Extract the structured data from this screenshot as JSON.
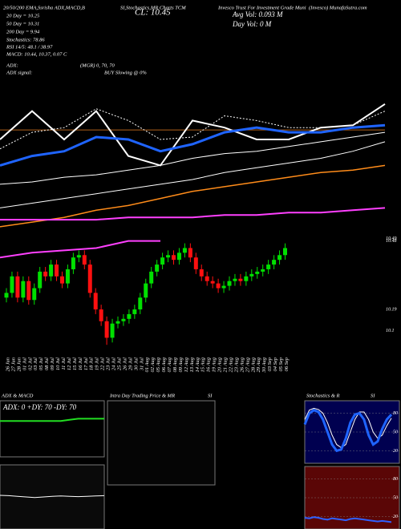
{
  "header": {
    "indicators": "20/50/200 EMA,Ssrisha ADX,MACD,B",
    "indicators2": "SI,Stochastics,MR Charts TCM",
    "close": "CL: 10.45",
    "company": "Invesco Trust For Investment Grade Muni",
    "site": "(Invesco) MunafaSutra.com",
    "avg_vol": "Avg Vol: 0.093 M",
    "day_vol": "Day Vol: 0  M",
    "ma20": "20 Day = 10.25",
    "ma50": "50 Day = 10.31",
    "ma200": "200 Day = 9.94",
    "stoch": "Stochastics: 78.86",
    "rsi": "RSI 14/5: 48.1 / 38.97",
    "macd": "MACD: 10.44, 10.37, 0.07 C",
    "adx": "ADX:",
    "adx_values": "(MGR) 0, 70, 70",
    "adx_signal": "ADX  signal:",
    "signal": "BUY Slowing @ 0%"
  },
  "intraday": {
    "title": "Intra Day Trading Price & MR",
    "title2": "SI"
  },
  "chart_data": [
    {
      "type": "candlestick",
      "categories": [
        "26 Jun",
        "27 Jun",
        "28 Jun",
        "01 Jul",
        "02 Jul",
        "03 Jul",
        "05 Jul",
        "08 Jul",
        "09 Jul",
        "10 Jul",
        "11 Jul",
        "12 Jul",
        "15 Jul",
        "16 Jul",
        "17 Jul",
        "18 Jul",
        "19 Jul",
        "22 Jul",
        "23 Jul",
        "24 Jul",
        "25 Jul",
        "26 Jul",
        "29 Jul",
        "30 Jul",
        "31 Jul",
        "01 Aug",
        "02 Aug",
        "05 Aug",
        "06 Aug",
        "07 Aug",
        "08 Aug",
        "09 Aug",
        "12 Aug",
        "13 Aug",
        "14 Aug",
        "15 Aug",
        "16 Aug",
        "19 Aug",
        "20 Aug",
        "21 Aug",
        "22 Aug",
        "23 Aug",
        "26 Aug",
        "27 Aug",
        "28 Aug",
        "29 Aug",
        "30 Aug",
        "03 Sep",
        "04 Sep",
        "05 Sep",
        "06 Sep"
      ],
      "open": [
        10.24,
        10.26,
        10.33,
        10.24,
        10.31,
        10.23,
        10.28,
        10.35,
        10.33,
        10.38,
        10.33,
        10.3,
        10.36,
        10.41,
        10.42,
        10.38,
        10.26,
        10.19,
        10.14,
        10.07,
        10.13,
        10.14,
        10.15,
        10.17,
        10.19,
        10.24,
        10.3,
        10.35,
        10.38,
        10.41,
        10.42,
        10.4,
        10.43,
        10.45,
        10.41,
        10.36,
        10.33,
        10.31,
        10.3,
        10.28,
        10.29,
        10.31,
        10.32,
        10.31,
        10.33,
        10.34,
        10.35,
        10.36,
        10.38,
        10.4,
        10.42
      ],
      "high": [
        10.28,
        10.35,
        10.35,
        10.33,
        10.33,
        10.3,
        10.37,
        10.37,
        10.4,
        10.4,
        10.35,
        10.38,
        10.43,
        10.44,
        10.44,
        10.4,
        10.28,
        10.21,
        10.16,
        10.15,
        10.16,
        10.17,
        10.19,
        10.21,
        10.26,
        10.32,
        10.37,
        10.4,
        10.43,
        10.44,
        10.44,
        10.45,
        10.47,
        10.47,
        10.43,
        10.38,
        10.35,
        10.33,
        10.32,
        10.31,
        10.33,
        10.34,
        10.34,
        10.35,
        10.36,
        10.37,
        10.38,
        10.4,
        10.42,
        10.44,
        10.47
      ],
      "low": [
        10.22,
        10.24,
        10.22,
        10.22,
        10.21,
        10.21,
        10.26,
        10.31,
        10.31,
        10.31,
        10.28,
        10.28,
        10.34,
        10.39,
        10.36,
        10.24,
        10.17,
        10.12,
        10.04,
        10.05,
        10.11,
        10.12,
        10.13,
        10.15,
        10.17,
        10.22,
        10.28,
        10.33,
        10.36,
        10.39,
        10.38,
        10.38,
        10.41,
        10.39,
        10.34,
        10.31,
        10.29,
        10.28,
        10.26,
        10.26,
        10.27,
        10.29,
        10.29,
        10.29,
        10.31,
        10.32,
        10.33,
        10.34,
        10.36,
        10.38,
        10.4
      ],
      "close": [
        10.26,
        10.33,
        10.24,
        10.31,
        10.23,
        10.28,
        10.35,
        10.33,
        10.38,
        10.33,
        10.3,
        10.36,
        10.41,
        10.42,
        10.38,
        10.26,
        10.19,
        10.14,
        10.07,
        10.13,
        10.14,
        10.15,
        10.17,
        10.19,
        10.24,
        10.3,
        10.35,
        10.38,
        10.41,
        10.42,
        10.4,
        10.43,
        10.45,
        10.41,
        10.36,
        10.33,
        10.31,
        10.3,
        10.28,
        10.29,
        10.31,
        10.32,
        10.31,
        10.33,
        10.34,
        10.35,
        10.36,
        10.38,
        10.4,
        10.42,
        10.45
      ],
      "up_color": "#00e000",
      "down_color": "#ff1010",
      "ylim": [
        10.0,
        11.1
      ],
      "yticks": [
        10.49,
        10.48,
        10.19,
        10.1
      ]
    },
    {
      "type": "line",
      "x": [
        0,
        1,
        2,
        3,
        4,
        5,
        6,
        7,
        8,
        9,
        10,
        11,
        12
      ],
      "xlim": [
        0,
        12
      ],
      "ylim": [
        10.0,
        11.1
      ],
      "hline": 10.95,
      "hline_color": "#b0601a",
      "series": [
        {
          "color": "#ffffff",
          "width": 2,
          "values": [
            10.91,
            11.03,
            10.91,
            11.03,
            10.84,
            10.8,
            10.99,
            10.96,
            10.91,
            10.91,
            10.96,
            10.97,
            11.06
          ]
        },
        {
          "color": "#ffffff",
          "width": 1,
          "dashed": true,
          "values": [
            10.87,
            10.94,
            10.96,
            11.04,
            10.99,
            10.91,
            10.92,
            11.01,
            10.99,
            10.96,
            10.96,
            10.97,
            11.03
          ]
        },
        {
          "color": "#1f64ff",
          "width": 3,
          "values": [
            10.8,
            10.84,
            10.86,
            10.92,
            10.91,
            10.86,
            10.89,
            10.94,
            10.96,
            10.94,
            10.94,
            10.96,
            10.97
          ]
        },
        {
          "color": "#ffffff",
          "width": 1,
          "values": [
            10.72,
            10.73,
            10.75,
            10.76,
            10.78,
            10.8,
            10.83,
            10.85,
            10.86,
            10.88,
            10.9,
            10.92,
            10.94
          ]
        },
        {
          "color": "#ffffff",
          "width": 1,
          "values": [
            10.62,
            10.64,
            10.66,
            10.68,
            10.7,
            10.72,
            10.74,
            10.77,
            10.79,
            10.81,
            10.83,
            10.86,
            10.9
          ]
        },
        {
          "color": "#ff8c1a",
          "width": 1.5,
          "values": [
            10.54,
            10.56,
            10.58,
            10.61,
            10.63,
            10.66,
            10.69,
            10.71,
            10.73,
            10.75,
            10.77,
            10.78,
            10.8
          ]
        },
        {
          "color": "#ff40ff",
          "width": 2,
          "values": [
            10.57,
            10.57,
            10.57,
            10.57,
            10.58,
            10.58,
            10.58,
            10.59,
            10.59,
            10.6,
            10.6,
            10.61,
            10.62
          ]
        },
        {
          "color": "#ff40ff",
          "width": 2,
          "values": [
            10.41,
            10.43,
            10.44,
            10.45,
            10.48,
            10.48,
            null,
            null,
            null,
            null,
            null,
            null,
            null
          ]
        }
      ]
    },
    {
      "type": "line",
      "title": "ADX  & MACD",
      "label": "ADX: 0  +DY: 70  -DY: 70",
      "ylim": [
        0,
        100
      ],
      "series": [
        {
          "color": "#22dd22",
          "width": 2,
          "values": [
            64,
            64,
            64,
            64,
            64,
            64,
            64,
            64,
            66,
            68,
            68,
            68,
            68
          ]
        }
      ]
    },
    {
      "type": "line",
      "ylim": [
        -1,
        1
      ],
      "series": [
        {
          "color": "#ffffff",
          "width": 1,
          "values": [
            0.05,
            0.04,
            0.02,
            0,
            -0.02,
            0,
            0.02,
            0.03,
            0.02,
            0.01,
            0.02,
            0.03,
            0.04
          ]
        }
      ]
    },
    {
      "type": "line",
      "title": "Stochastics & R",
      "title2": "SI",
      "ylim": [
        0,
        100
      ],
      "yticks": [
        80,
        50,
        20
      ],
      "background": "#000050",
      "series": [
        {
          "color": "#ffffff",
          "width": 1,
          "values": [
            70,
            85,
            88,
            86,
            80,
            65,
            45,
            30,
            25,
            30,
            50,
            70,
            82,
            82,
            70,
            50,
            40,
            45,
            60,
            72
          ]
        },
        {
          "color": "#1f64ff",
          "width": 3,
          "values": [
            62,
            80,
            85,
            82,
            70,
            50,
            30,
            20,
            22,
            40,
            65,
            78,
            80,
            70,
            45,
            30,
            35,
            55,
            70,
            78
          ]
        }
      ]
    },
    {
      "type": "line",
      "ylim": [
        0,
        100
      ],
      "yticks": [
        80,
        50,
        20
      ],
      "background": "#5a0606",
      "series": [
        {
          "color": "#3060ff",
          "width": 2,
          "values": [
            18,
            17,
            19,
            18,
            16,
            15,
            17,
            16,
            15,
            14,
            16,
            17,
            16,
            15,
            14,
            13,
            12,
            13,
            12,
            11
          ]
        }
      ]
    }
  ]
}
